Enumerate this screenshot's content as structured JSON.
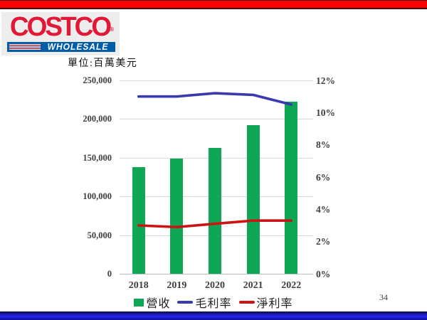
{
  "page": {
    "unit_label": "單位:百萬美元",
    "page_number": "34",
    "logo": {
      "brand": "COSTCO",
      "reg_mark": "®",
      "sub": "WHOLESALE",
      "brand_color": "#e21837",
      "band_color": "#005daa"
    }
  },
  "chart_data": {
    "type": "bar",
    "subtype": "combo-bar-line-dual-axis",
    "categories": [
      "2018",
      "2019",
      "2020",
      "2021",
      "2022"
    ],
    "series": [
      {
        "name": "營收",
        "type": "bar",
        "axis": "left",
        "color": "#0fa655",
        "values": [
          138000,
          149000,
          163000,
          192000,
          222500
        ]
      },
      {
        "name": "毛利率",
        "type": "line",
        "axis": "right",
        "color": "#3a3aae",
        "values": [
          11.0,
          11.0,
          11.2,
          11.1,
          10.5
        ]
      },
      {
        "name": "淨利率",
        "type": "line",
        "axis": "right",
        "color": "#cc1414",
        "values": [
          3.0,
          2.9,
          3.1,
          3.3,
          3.3
        ]
      }
    ],
    "title": "",
    "xlabel": "",
    "ylabel_left_unit": "單位:百萬美元",
    "left_axis": {
      "min": 0,
      "max": 250000,
      "ticks": [
        "250,000",
        "200,000",
        "150,000",
        "100,000",
        "50,000",
        "0"
      ]
    },
    "right_axis": {
      "min": 0,
      "max": 12,
      "ticks": [
        "12%",
        "10%",
        "8%",
        "6%",
        "4%",
        "2%",
        "0%"
      ]
    },
    "grid": "horizontal",
    "grid_color": "#d9d9d9",
    "legend_position": "bottom"
  }
}
